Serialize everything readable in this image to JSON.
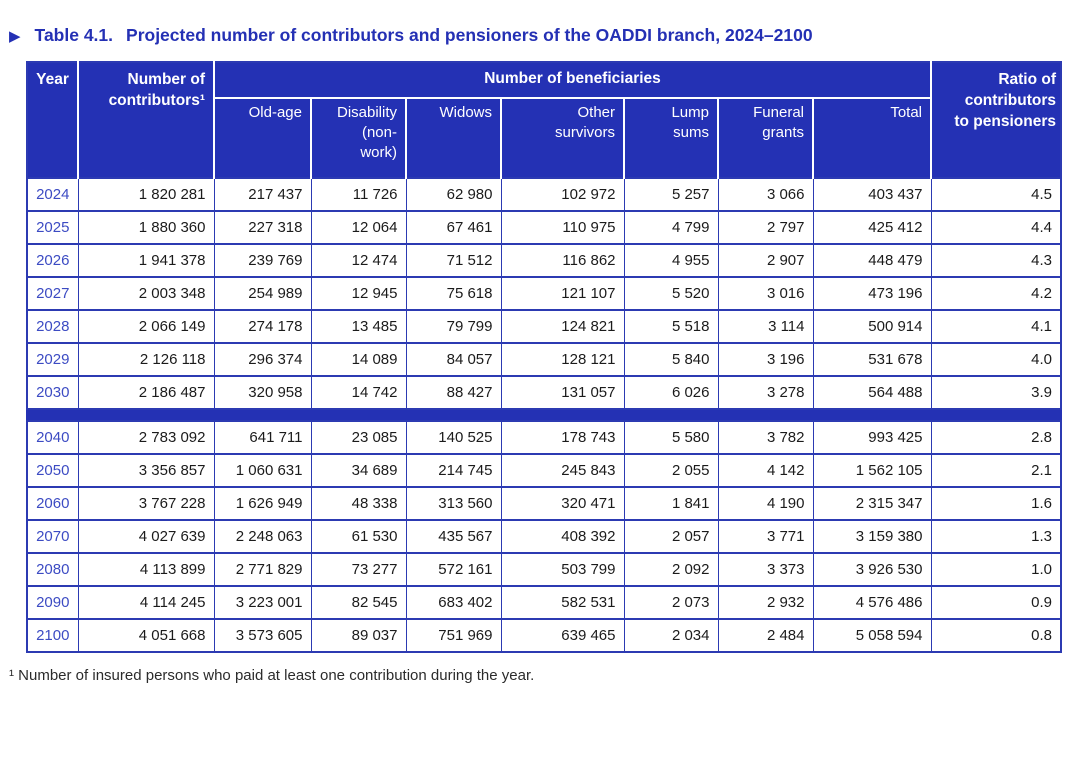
{
  "title": {
    "marker": "▶",
    "label": "Table 4.1.",
    "text": "Projected number of contributors and pensioners of the OADDI branch, 2024–2100"
  },
  "table": {
    "header": {
      "year": "Year",
      "contributors": "Number of\ncontributors¹",
      "beneficiaries_group": "Number of beneficiaries",
      "beneficiary_cols": [
        "Old-age",
        "Disability\n(non-\nwork)",
        "Widows",
        "Other\nsurvivors",
        "Lump\nsums",
        "Funeral\ngrants",
        "Total"
      ],
      "ratio": "Ratio of\ncontributors\nto pensioners"
    },
    "sections": [
      {
        "rows": [
          [
            "2024",
            "1 820 281",
            "217 437",
            "11 726",
            "62 980",
            "102 972",
            "5 257",
            "3 066",
            "403 437",
            "4.5"
          ],
          [
            "2025",
            "1 880 360",
            "227 318",
            "12 064",
            "67 461",
            "110 975",
            "4 799",
            "2 797",
            "425 412",
            "4.4"
          ],
          [
            "2026",
            "1 941 378",
            "239 769",
            "12 474",
            "71 512",
            "116 862",
            "4 955",
            "2 907",
            "448 479",
            "4.3"
          ],
          [
            "2027",
            "2 003 348",
            "254 989",
            "12 945",
            "75 618",
            "121 107",
            "5 520",
            "3 016",
            "473 196",
            "4.2"
          ],
          [
            "2028",
            "2 066 149",
            "274 178",
            "13 485",
            "79 799",
            "124 821",
            "5 518",
            "3 114",
            "500 914",
            "4.1"
          ],
          [
            "2029",
            "2 126 118",
            "296 374",
            "14 089",
            "84 057",
            "128 121",
            "5 840",
            "3 196",
            "531 678",
            "4.0"
          ],
          [
            "2030",
            "2 186 487",
            "320 958",
            "14 742",
            "88 427",
            "131 057",
            "6 026",
            "3 278",
            "564 488",
            "3.9"
          ]
        ]
      },
      {
        "rows": [
          [
            "2040",
            "2 783 092",
            "641 711",
            "23 085",
            "140 525",
            "178 743",
            "5 580",
            "3 782",
            "993 425",
            "2.8"
          ],
          [
            "2050",
            "3 356 857",
            "1 060 631",
            "34 689",
            "214 745",
            "245 843",
            "2 055",
            "4 142",
            "1 562 105",
            "2.1"
          ],
          [
            "2060",
            "3 767 228",
            "1 626 949",
            "48 338",
            "313 560",
            "320 471",
            "1 841",
            "4 190",
            "2 315 347",
            "1.6"
          ],
          [
            "2070",
            "4 027 639",
            "2 248 063",
            "61 530",
            "435 567",
            "408 392",
            "2 057",
            "3 771",
            "3 159 380",
            "1.3"
          ],
          [
            "2080",
            "4 113 899",
            "2 771 829",
            "73 277",
            "572 161",
            "503 799",
            "2 092",
            "3 373",
            "3 926 530",
            "1.0"
          ],
          [
            "2090",
            "4 114 245",
            "3 223 001",
            "82 545",
            "683 402",
            "582 531",
            "2 073",
            "2 932",
            "4 576 486",
            "0.9"
          ],
          [
            "2100",
            "4 051 668",
            "3 573 605",
            "89 037",
            "751 969",
            "639 465",
            "2 034",
            "2 484",
            "5 058 594",
            "0.8"
          ]
        ]
      }
    ]
  },
  "footnote": "¹ Number of insured persons who paid at least one contribution during the year.",
  "colors": {
    "header_blue": "#2431b4",
    "grid_blue": "#2c3ab2",
    "year_blue": "#3c4bc3",
    "title_blue": "#2430b4",
    "text_dark": "#1b1b1b"
  }
}
